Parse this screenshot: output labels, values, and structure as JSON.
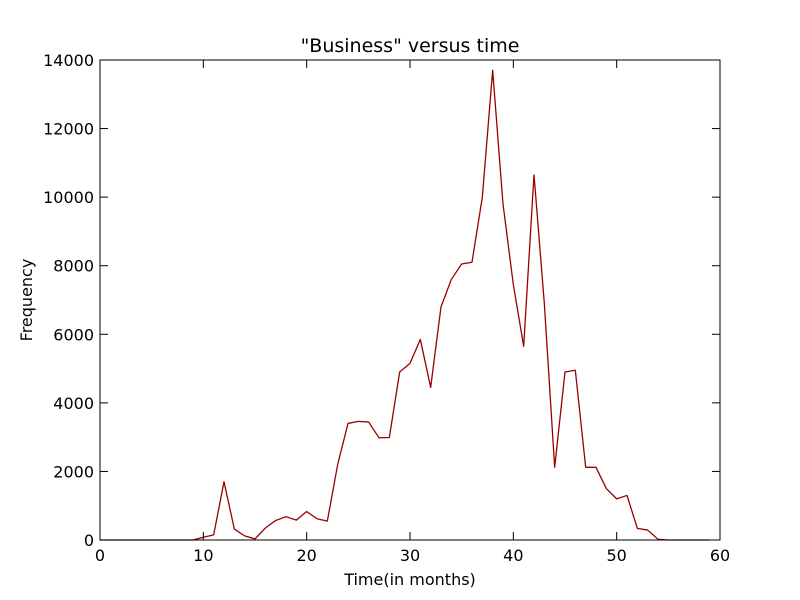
{
  "chart_data": {
    "type": "line",
    "title": "\"Business\" versus time",
    "xlabel": "Time(in months)",
    "ylabel": "Frequency",
    "xlim": [
      0,
      60
    ],
    "ylim": [
      0,
      14000
    ],
    "xticks": [
      0,
      10,
      20,
      30,
      40,
      50,
      60
    ],
    "yticks": [
      0,
      2000,
      4000,
      6000,
      8000,
      10000,
      12000,
      14000
    ],
    "grid": false,
    "legend": "none",
    "series": [
      {
        "color": "#990000",
        "x": [
          0,
          1,
          2,
          3,
          4,
          5,
          6,
          7,
          8,
          9,
          10,
          11,
          12,
          13,
          14,
          15,
          16,
          17,
          18,
          19,
          20,
          21,
          22,
          23,
          24,
          25,
          26,
          27,
          28,
          29,
          30,
          31,
          32,
          33,
          34,
          35,
          36,
          37,
          38,
          39,
          40,
          41,
          42,
          43,
          44,
          45,
          46,
          47,
          48,
          49,
          50,
          51,
          52,
          53,
          54,
          55,
          56,
          57,
          58,
          59
        ],
        "y": [
          0,
          0,
          0,
          0,
          0,
          0,
          0,
          0,
          0,
          0,
          80,
          150,
          1700,
          320,
          120,
          30,
          350,
          570,
          680,
          580,
          830,
          620,
          550,
          2200,
          3400,
          3460,
          3440,
          2980,
          2990,
          4900,
          5150,
          5850,
          4450,
          6800,
          7600,
          8050,
          8100,
          10000,
          13700,
          9800,
          7450,
          5650,
          10650,
          6900,
          2120,
          4900,
          4950,
          2120,
          2120,
          1500,
          1200,
          1300,
          340,
          290,
          20,
          0,
          0,
          0,
          0,
          0
        ]
      }
    ]
  }
}
